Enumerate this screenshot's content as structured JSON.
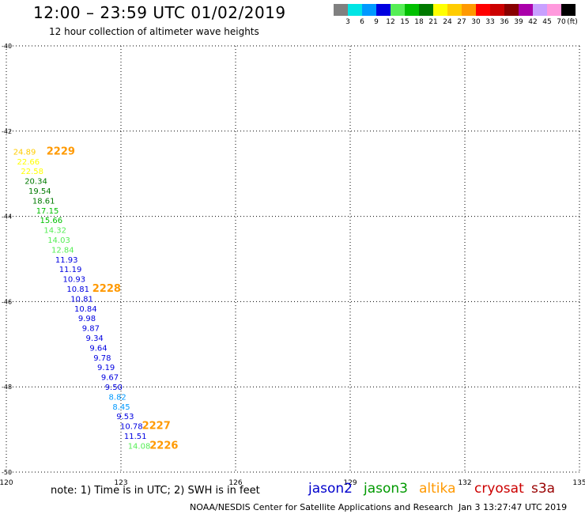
{
  "header": {
    "title": "12:00 – 23:59 UTC 01/02/2019",
    "subtitle": "12 hour collection of altimeter wave heights"
  },
  "scale": {
    "unit": "(ft)",
    "bins": [
      {
        "label": "3",
        "color": "#808080"
      },
      {
        "label": "6",
        "color": "#00e5e5"
      },
      {
        "label": "9",
        "color": "#0099ff"
      },
      {
        "label": "12",
        "color": "#0000e0"
      },
      {
        "label": "15",
        "color": "#55ee55"
      },
      {
        "label": "18",
        "color": "#00c000"
      },
      {
        "label": "21",
        "color": "#007a00"
      },
      {
        "label": "24",
        "color": "#ffff00"
      },
      {
        "label": "27",
        "color": "#ffcc00"
      },
      {
        "label": "30",
        "color": "#ff9900"
      },
      {
        "label": "33",
        "color": "#ff0000"
      },
      {
        "label": "36",
        "color": "#cc0000"
      },
      {
        "label": "39",
        "color": "#880000"
      },
      {
        "label": "42",
        "color": "#aa00aa"
      },
      {
        "label": "45",
        "color": "#c8a0ff"
      },
      {
        "label": "70",
        "color": "#ff99dd"
      },
      {
        "label": "",
        "color": "#000000"
      }
    ]
  },
  "chart_data": {
    "type": "scatter",
    "xlim": [
      120,
      135
    ],
    "ylim": [
      -50,
      -40
    ],
    "x_ticks": [
      "120",
      "123",
      "126",
      "129",
      "132",
      "135"
    ],
    "y_ticks": [
      "-40",
      "-42",
      "-44",
      "-46",
      "-48",
      "-50"
    ],
    "grid": true,
    "points": [
      {
        "lon": 120.18,
        "lat": -42.55,
        "label": "24.89",
        "color": "#ffcc00"
      },
      {
        "lon": 120.28,
        "lat": -42.78,
        "label": "22.66",
        "color": "#ffff00"
      },
      {
        "lon": 120.38,
        "lat": -43.01,
        "label": "22.58",
        "color": "#ffff00"
      },
      {
        "lon": 120.48,
        "lat": -43.24,
        "label": "20.34",
        "color": "#007a00"
      },
      {
        "lon": 120.58,
        "lat": -43.47,
        "label": "19.54",
        "color": "#007a00"
      },
      {
        "lon": 120.68,
        "lat": -43.7,
        "label": "18.61",
        "color": "#007a00"
      },
      {
        "lon": 120.78,
        "lat": -43.93,
        "label": "17.15",
        "color": "#00c000"
      },
      {
        "lon": 120.88,
        "lat": -44.16,
        "label": "15.66",
        "color": "#00c000"
      },
      {
        "lon": 120.98,
        "lat": -44.39,
        "label": "14.32",
        "color": "#55ee55"
      },
      {
        "lon": 121.08,
        "lat": -44.62,
        "label": "14.03",
        "color": "#55ee55"
      },
      {
        "lon": 121.18,
        "lat": -44.85,
        "label": "12.84",
        "color": "#55ee55"
      },
      {
        "lon": 121.28,
        "lat": -45.08,
        "label": "11.93",
        "color": "#0000e0"
      },
      {
        "lon": 121.38,
        "lat": -45.31,
        "label": "11.19",
        "color": "#0000e0"
      },
      {
        "lon": 121.48,
        "lat": -45.54,
        "label": "10.93",
        "color": "#0000e0"
      },
      {
        "lon": 121.58,
        "lat": -45.77,
        "label": "10.81",
        "color": "#0000e0"
      },
      {
        "lon": 121.68,
        "lat": -46.0,
        "label": "10.81",
        "color": "#0000e0"
      },
      {
        "lon": 121.78,
        "lat": -46.23,
        "label": "10.84",
        "color": "#0000e0"
      },
      {
        "lon": 121.88,
        "lat": -46.46,
        "label": "9.98",
        "color": "#0000e0"
      },
      {
        "lon": 121.98,
        "lat": -46.69,
        "label": "9.87",
        "color": "#0000e0"
      },
      {
        "lon": 122.08,
        "lat": -46.92,
        "label": "9.34",
        "color": "#0000e0"
      },
      {
        "lon": 122.18,
        "lat": -47.15,
        "label": "9.64",
        "color": "#0000e0"
      },
      {
        "lon": 122.28,
        "lat": -47.38,
        "label": "9.78",
        "color": "#0000e0"
      },
      {
        "lon": 122.38,
        "lat": -47.61,
        "label": "9.19",
        "color": "#0000e0"
      },
      {
        "lon": 122.48,
        "lat": -47.84,
        "label": "9.67",
        "color": "#0000e0"
      },
      {
        "lon": 122.58,
        "lat": -48.07,
        "label": "9.50",
        "color": "#0000e0"
      },
      {
        "lon": 122.68,
        "lat": -48.3,
        "label": "8.82",
        "color": "#0099ff"
      },
      {
        "lon": 122.78,
        "lat": -48.53,
        "label": "8.45",
        "color": "#0099ff"
      },
      {
        "lon": 122.88,
        "lat": -48.76,
        "label": "9.53",
        "color": "#0000e0"
      },
      {
        "lon": 122.98,
        "lat": -48.99,
        "label": "10.78",
        "color": "#0000e0"
      },
      {
        "lon": 123.08,
        "lat": -49.22,
        "label": "11.51",
        "color": "#0000e0"
      },
      {
        "lon": 123.18,
        "lat": -49.45,
        "label": "14.08",
        "color": "#55ee55"
      }
    ],
    "pass_labels": [
      {
        "text": "2229",
        "lon": 121.05,
        "lat": -42.55,
        "color": "#ff9900"
      },
      {
        "text": "2228",
        "lon": 122.25,
        "lat": -45.77,
        "color": "#ff9900"
      },
      {
        "text": "2227",
        "lon": 123.55,
        "lat": -48.99,
        "color": "#ff9900"
      },
      {
        "text": "2226",
        "lon": 123.75,
        "lat": -49.45,
        "color": "#ff9900"
      }
    ]
  },
  "footer": {
    "note": "note: 1) Time is in UTC; 2) SWH is in feet",
    "satellites": [
      {
        "name": "jason2",
        "color": "#0000cc"
      },
      {
        "name": "jason3",
        "color": "#009900"
      },
      {
        "name": "altika",
        "color": "#ff9900"
      },
      {
        "name": "cryosat",
        "color": "#cc0000"
      },
      {
        "name": "s3a",
        "color": "#990000"
      }
    ],
    "credit": "NOAA/NESDIS Center for Satellite Applications and Research",
    "timestamp": "Jan  3 13:27:47 UTC 2019"
  }
}
